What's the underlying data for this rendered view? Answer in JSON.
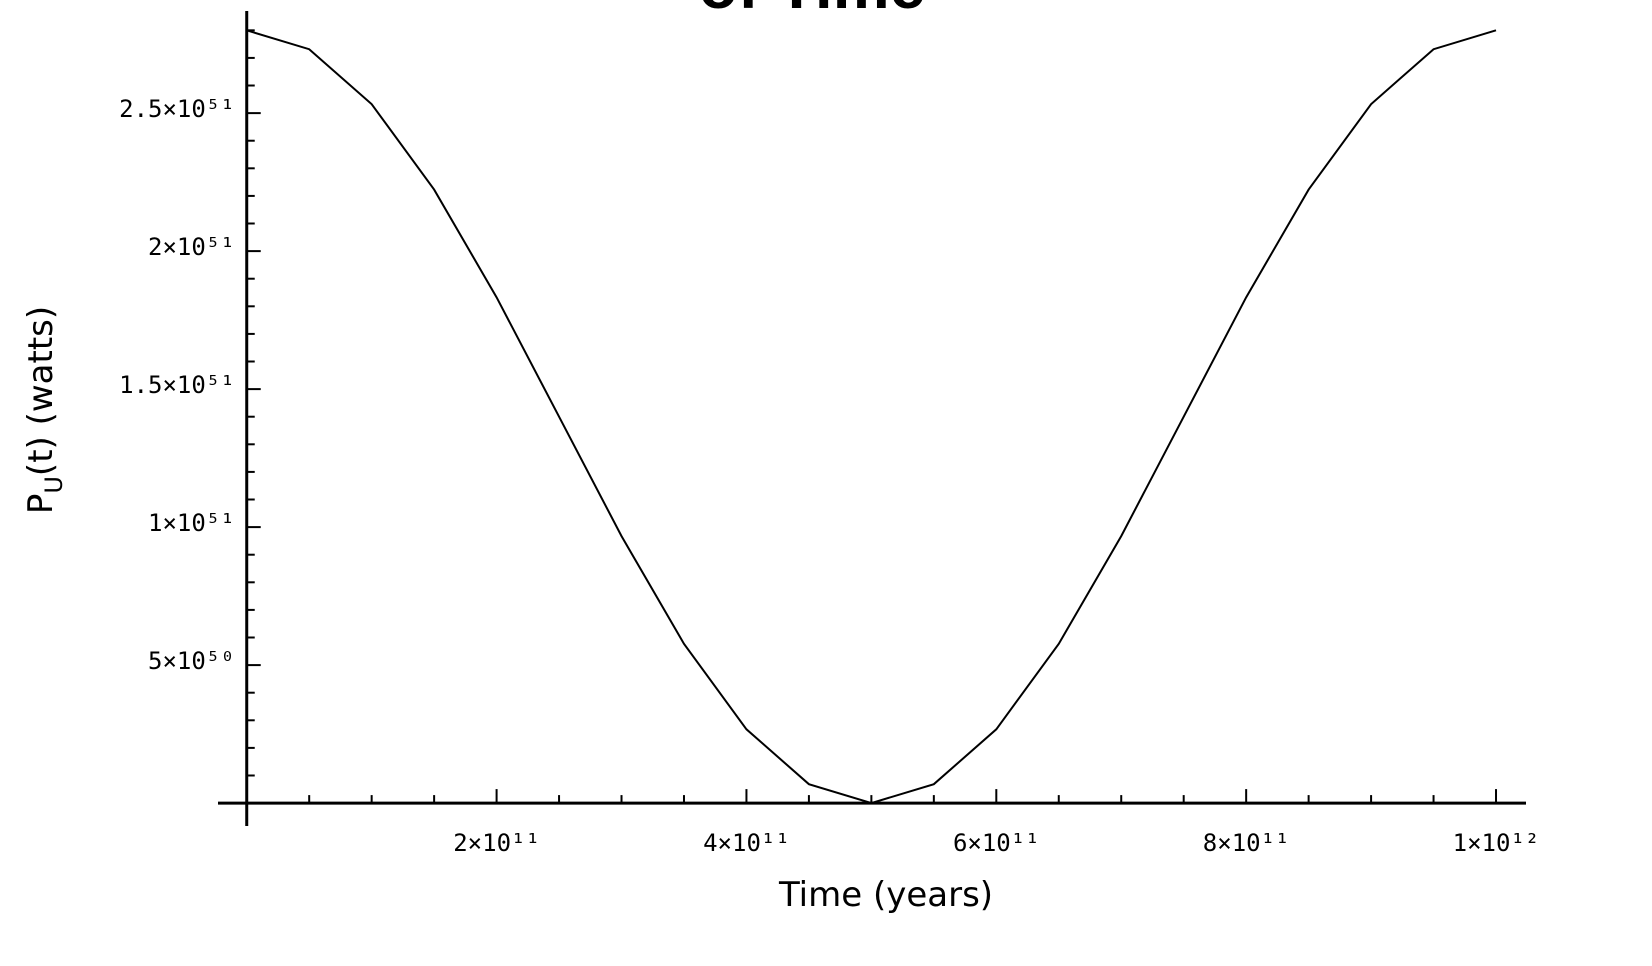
{
  "chart_data": {
    "type": "line",
    "title": "of Time",
    "x_label": "Time (years)",
    "y_label": [
      "P",
      "U",
      "(t)  (watts)"
    ],
    "color": "#000000",
    "x": [
      0,
      50000000000.0,
      100000000000.0,
      150000000000.0,
      200000000000.0,
      250000000000.0,
      300000000000.0,
      350000000000.0,
      400000000000.0,
      450000000000.0,
      500000000000.0,
      550000000000.0,
      600000000000.0,
      650000000000.0,
      700000000000.0,
      750000000000.0,
      800000000000.0,
      850000000000.0,
      900000000000.0,
      950000000000.0,
      1000000000000.0
    ],
    "values": [
      2.8e+51,
      2.7315e+51,
      2.5326e+51,
      2.2229e+51,
      1.8326e+51,
      1.4e+51,
      9.674e+50,
      5.771e+50,
      2.674e+50,
      6.85e+49,
      0,
      6.85e+49,
      2.674e+50,
      5.771e+50,
      9.674e+50,
      1.4e+51,
      1.8326e+51,
      2.2229e+51,
      2.5326e+51,
      2.7315e+51,
      2.8e+51
    ],
    "xlim": [
      -23000000000.0,
      1024000000000.0
    ],
    "ylim": [
      -8.3e+49,
      2.87e+51
    ],
    "xticks": [
      {
        "value": 200000000000.0,
        "label": "2×10¹¹"
      },
      {
        "value": 400000000000.0,
        "label": "4×10¹¹"
      },
      {
        "value": 600000000000.0,
        "label": "6×10¹¹"
      },
      {
        "value": 800000000000.0,
        "label": "8×10¹¹"
      },
      {
        "value": 1000000000000.0,
        "label": "1×10¹²"
      }
    ],
    "yticks": [
      {
        "value": 5e+50,
        "label": "5×10⁵⁰"
      },
      {
        "value": 1e+51,
        "label": "1×10⁵¹"
      },
      {
        "value": 1.5e+51,
        "label": "1.5×10⁵¹"
      },
      {
        "value": 2e+51,
        "label": "2×10⁵¹"
      },
      {
        "value": 2.5e+51,
        "label": "2.5×10⁵¹"
      }
    ],
    "minor_xticks": [
      50000000000.0,
      100000000000.0,
      150000000000.0,
      250000000000.0,
      300000000000.0,
      350000000000.0,
      450000000000.0,
      500000000000.0,
      550000000000.0,
      650000000000.0,
      700000000000.0,
      750000000000.0,
      850000000000.0,
      900000000000.0,
      950000000000.0
    ],
    "minor_yticks": [
      1e+50,
      2e+50,
      3e+50,
      4e+50,
      6e+50,
      7e+50,
      8e+50,
      9e+50,
      1.1e+51,
      1.2e+51,
      1.3e+51,
      1.4e+51,
      1.6e+51,
      1.7e+51,
      1.8e+51,
      1.9e+51,
      2.1e+51,
      2.2e+51,
      2.3e+51,
      2.4e+51,
      2.6e+51,
      2.7e+51,
      2.8e+51
    ]
  }
}
